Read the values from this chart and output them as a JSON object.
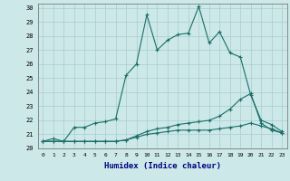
{
  "xlabel": "Humidex (Indice chaleur)",
  "background_color": "#cce8e8",
  "grid_color": "#aacccc",
  "line_color": "#1a6e6a",
  "xlim": [
    -0.5,
    23.5
  ],
  "ylim": [
    20,
    30.3
  ],
  "x_ticks": [
    0,
    1,
    2,
    3,
    4,
    5,
    6,
    7,
    8,
    9,
    10,
    11,
    12,
    13,
    14,
    15,
    16,
    17,
    18,
    19,
    20,
    21,
    22,
    23
  ],
  "y_ticks": [
    20,
    21,
    22,
    23,
    24,
    25,
    26,
    27,
    28,
    29,
    30
  ],
  "series": [
    {
      "x": [
        0,
        1,
        2,
        3,
        4,
        5,
        6,
        7,
        8,
        9,
        10,
        11,
        12,
        13,
        14,
        15,
        16,
        17,
        18,
        19,
        20,
        21,
        22,
        23
      ],
      "y": [
        20.5,
        20.7,
        20.5,
        21.5,
        21.5,
        21.8,
        21.9,
        22.1,
        25.2,
        26.0,
        29.5,
        27.0,
        27.7,
        28.1,
        28.2,
        30.1,
        27.5,
        28.3,
        26.8,
        26.5,
        23.8,
        22.0,
        21.7,
        21.2
      ]
    },
    {
      "x": [
        0,
        1,
        2,
        3,
        4,
        5,
        6,
        7,
        8,
        9,
        10,
        11,
        12,
        13,
        14,
        15,
        16,
        17,
        18,
        19,
        20,
        21,
        22,
        23
      ],
      "y": [
        20.5,
        20.5,
        20.5,
        20.5,
        20.5,
        20.5,
        20.5,
        20.5,
        20.6,
        20.8,
        21.0,
        21.1,
        21.2,
        21.3,
        21.3,
        21.3,
        21.3,
        21.4,
        21.5,
        21.6,
        21.8,
        21.6,
        21.4,
        21.1
      ]
    },
    {
      "x": [
        0,
        1,
        2,
        3,
        4,
        5,
        6,
        7,
        8,
        9,
        10,
        11,
        12,
        13,
        14,
        15,
        16,
        17,
        18,
        19,
        20,
        21,
        22,
        23
      ],
      "y": [
        20.5,
        20.5,
        20.5,
        20.5,
        20.5,
        20.5,
        20.5,
        20.5,
        20.6,
        20.9,
        21.2,
        21.4,
        21.5,
        21.7,
        21.8,
        21.9,
        22.0,
        22.3,
        22.8,
        23.5,
        23.9,
        21.8,
        21.3,
        21.1
      ]
    }
  ]
}
